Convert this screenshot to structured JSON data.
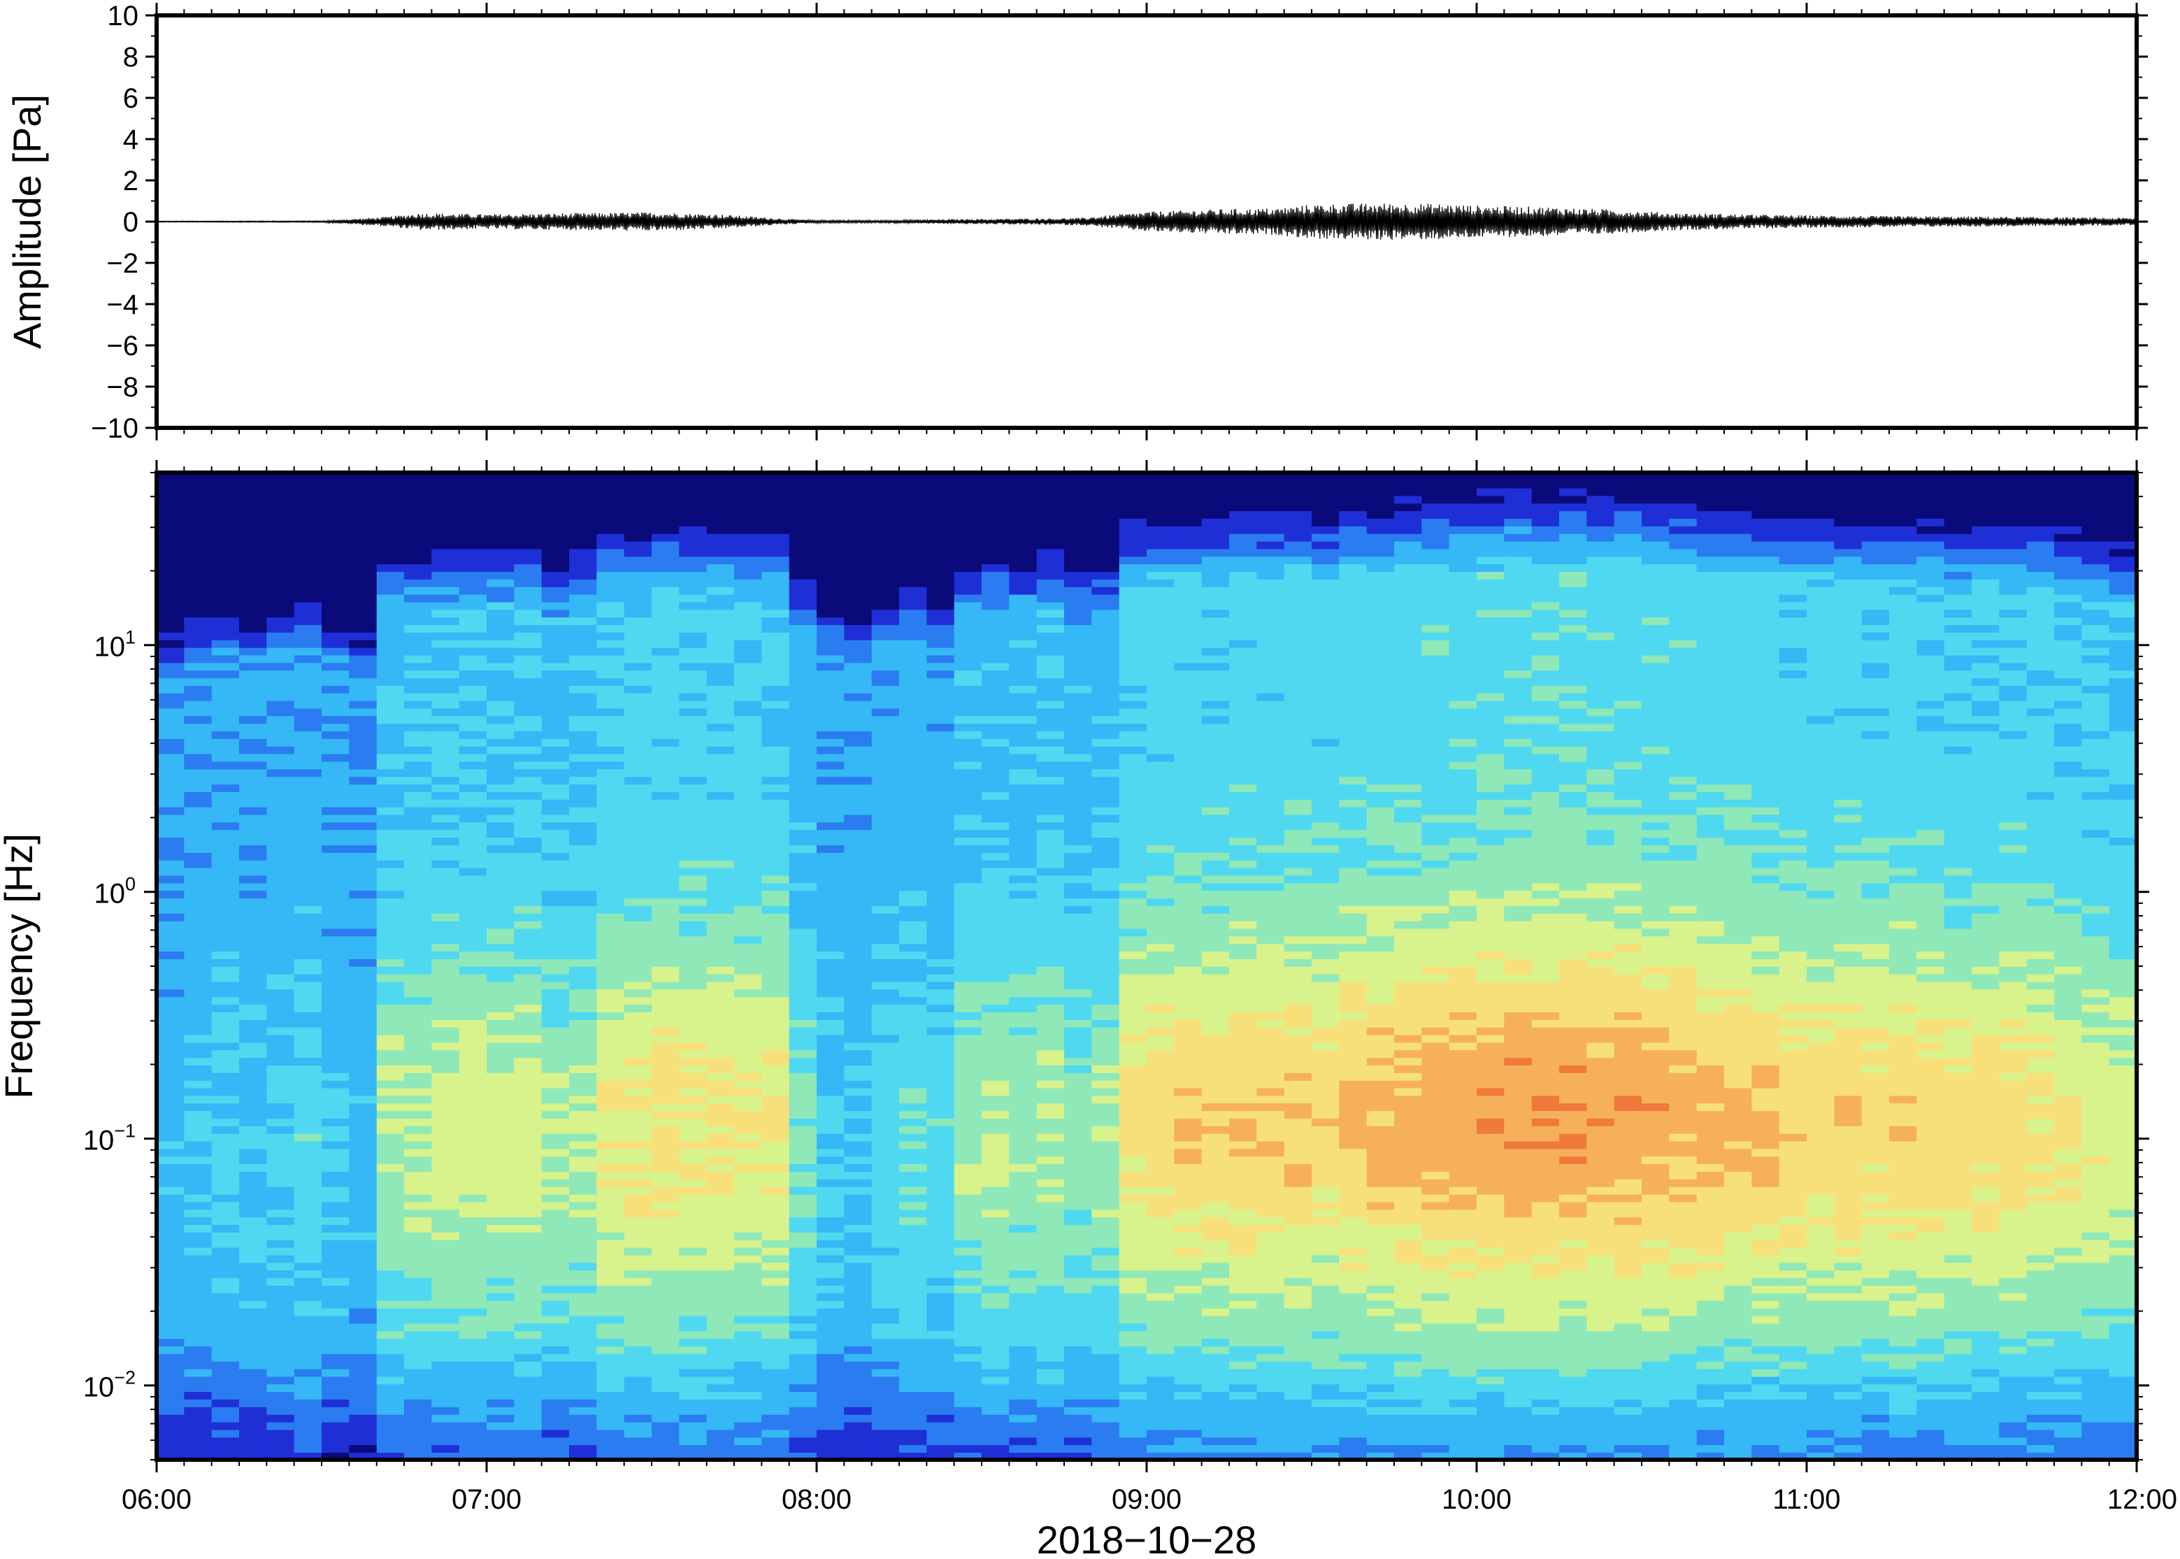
{
  "chart_data": [
    {
      "type": "line",
      "panel": "waveform",
      "ylabel": "Amplitude [Pa]",
      "ylim": [
        -10,
        10
      ],
      "yticks": [
        10,
        8,
        6,
        4,
        2,
        0,
        -2,
        -4,
        -6,
        -8,
        -10
      ],
      "ytick_labels": [
        "10",
        "8",
        "6",
        "4",
        "2",
        "0",
        "−2",
        "−4",
        "−6",
        "−8",
        "−10"
      ],
      "x_range_hours": [
        6,
        12
      ],
      "envelope": {
        "x": [
          6.0,
          6.5,
          6.7,
          6.8,
          7.0,
          7.3,
          7.5,
          7.7,
          7.9,
          8.0,
          8.2,
          8.4,
          8.6,
          8.8,
          9.0,
          9.2,
          9.4,
          9.5,
          9.7,
          9.9,
          10.0,
          10.2,
          10.4,
          10.6,
          10.8,
          11.0,
          11.3,
          11.6,
          12.0
        ],
        "y": [
          0.02,
          0.03,
          0.2,
          0.35,
          0.3,
          0.35,
          0.38,
          0.3,
          0.12,
          0.06,
          0.05,
          0.1,
          0.12,
          0.15,
          0.4,
          0.5,
          0.55,
          0.7,
          0.75,
          0.72,
          0.65,
          0.6,
          0.5,
          0.35,
          0.3,
          0.25,
          0.22,
          0.2,
          0.15
        ]
      }
    },
    {
      "type": "heatmap",
      "panel": "spectrogram",
      "ylabel": "Frequency [Hz]",
      "xlabel": "2018−10−28",
      "yscale": "log",
      "ylim": [
        0.005,
        50
      ],
      "ytick_exponents": [
        "1",
        "0",
        "−1",
        "−2"
      ],
      "ytick_base": "10",
      "xticks": [
        "06:00",
        "07:00",
        "08:00",
        "09:00",
        "10:00",
        "11:00",
        "12:00"
      ],
      "columns": 72,
      "colormap": [
        "#0a0a7a",
        "#1f2fd6",
        "#2a7cf0",
        "#35b8f5",
        "#4fd8f0",
        "#8fe8b8",
        "#d8f28c",
        "#f7e07a",
        "#f7b05a",
        "#ef7a3a"
      ],
      "column_activity": [
        0.15,
        0.2,
        0.25,
        0.2,
        0.25,
        0.3,
        0.2,
        0.15,
        0.55,
        0.55,
        0.6,
        0.62,
        0.6,
        0.6,
        0.5,
        0.55,
        0.7,
        0.72,
        0.75,
        0.72,
        0.75,
        0.7,
        0.7,
        0.4,
        0.25,
        0.2,
        0.3,
        0.35,
        0.3,
        0.5,
        0.55,
        0.5,
        0.55,
        0.45,
        0.5,
        0.75,
        0.8,
        0.82,
        0.8,
        0.85,
        0.82,
        0.85,
        0.8,
        0.88,
        0.9,
        0.92,
        0.95,
        0.96,
        0.98,
        1.0,
        0.98,
        1.0,
        0.98,
        0.97,
        0.95,
        0.93,
        0.9,
        0.88,
        0.86,
        0.82,
        0.8,
        0.82,
        0.78,
        0.82,
        0.8,
        0.75,
        0.78,
        0.78,
        0.75,
        0.7,
        0.65,
        0.62
      ]
    }
  ]
}
